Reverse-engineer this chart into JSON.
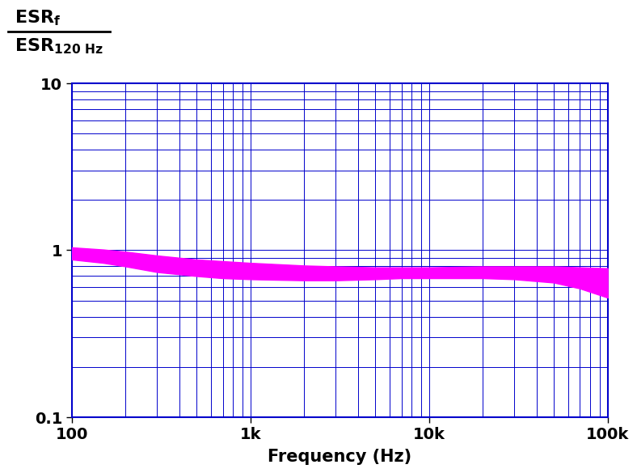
{
  "xlim": [
    100,
    100000
  ],
  "ylim": [
    0.1,
    10
  ],
  "band_color": "#FF00FF",
  "band_alpha": 1.0,
  "grid_color": "#0000CC",
  "grid_linewidth": 0.7,
  "xlabel": "Frequency (Hz)",
  "xlabel_fontsize": 15,
  "ylabel_fontsize": 15,
  "tick_fontsize": 14,
  "upper_curve_x": [
    100,
    150,
    200,
    300,
    500,
    700,
    1000,
    2000,
    3000,
    5000,
    7000,
    10000,
    20000,
    30000,
    50000,
    70000,
    100000
  ],
  "upper_curve_y": [
    1.04,
    1.01,
    0.98,
    0.93,
    0.88,
    0.86,
    0.84,
    0.81,
    0.8,
    0.79,
    0.79,
    0.79,
    0.8,
    0.8,
    0.8,
    0.79,
    0.78
  ],
  "lower_curve_x": [
    100,
    150,
    200,
    300,
    500,
    700,
    1000,
    2000,
    3000,
    5000,
    7000,
    10000,
    20000,
    30000,
    50000,
    70000,
    100000
  ],
  "lower_curve_y": [
    0.88,
    0.84,
    0.8,
    0.74,
    0.7,
    0.68,
    0.67,
    0.66,
    0.66,
    0.67,
    0.68,
    0.68,
    0.68,
    0.67,
    0.64,
    0.59,
    0.52
  ],
  "background_color": "#FFFFFF",
  "spine_color": "#0000CC",
  "spine_linewidth": 1.5
}
